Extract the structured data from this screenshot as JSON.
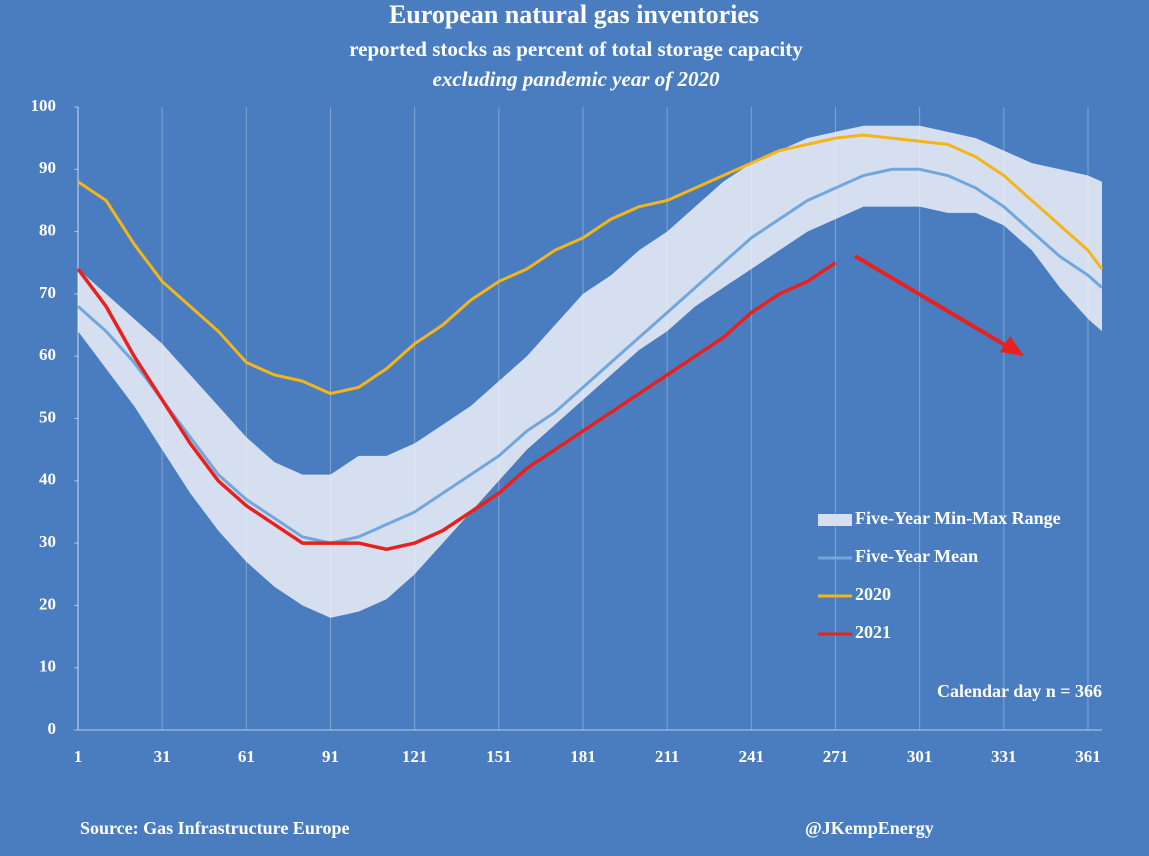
{
  "chart_data": {
    "type": "line",
    "title": "European natural gas inventories",
    "subtitle": "reported stocks as percent of total storage capacity",
    "subtitle2": "excluding pandemic year of 2020",
    "annotation": "Calendar day n = 366",
    "source": "Source: Gas Infrastructure Europe",
    "credit": "@JKempEnergy",
    "xlim": [
      1,
      366
    ],
    "ylim": [
      0,
      100
    ],
    "xticks": [
      1,
      31,
      61,
      91,
      121,
      151,
      181,
      211,
      241,
      271,
      301,
      331,
      361
    ],
    "yticks": [
      0,
      10,
      20,
      30,
      40,
      50,
      60,
      70,
      80,
      90,
      100
    ],
    "grid": "x",
    "x": [
      1,
      11,
      21,
      31,
      41,
      51,
      61,
      71,
      81,
      91,
      101,
      111,
      121,
      131,
      141,
      151,
      161,
      171,
      181,
      191,
      201,
      211,
      221,
      231,
      241,
      251,
      261,
      271,
      281,
      291,
      301,
      311,
      321,
      331,
      341,
      351,
      361,
      366
    ],
    "range": {
      "name": "Five-Year Min-Max Range",
      "color": "#d5dff0",
      "upper": [
        74,
        70,
        66,
        62,
        57,
        52,
        47,
        43,
        41,
        41,
        44,
        44,
        46,
        49,
        52,
        56,
        60,
        65,
        70,
        73,
        77,
        80,
        84,
        88,
        91,
        93,
        95,
        96,
        97,
        97,
        97,
        96,
        95,
        93,
        91,
        90,
        89,
        88
      ],
      "lower": [
        64,
        58,
        52,
        45,
        38,
        32,
        27,
        23,
        20,
        18,
        19,
        21,
        25,
        30,
        35,
        40,
        45,
        49,
        53,
        57,
        61,
        64,
        68,
        71,
        74,
        77,
        80,
        82,
        84,
        84,
        84,
        83,
        83,
        81,
        77,
        71,
        66,
        64
      ]
    },
    "series": [
      {
        "name": "Five-Year Mean",
        "color": "#72a7dd",
        "values": [
          68,
          64,
          59,
          53,
          47,
          41,
          37,
          34,
          31,
          30,
          31,
          33,
          35,
          38,
          41,
          44,
          48,
          51,
          55,
          59,
          63,
          67,
          71,
          75,
          79,
          82,
          85,
          87,
          89,
          90,
          90,
          89,
          87,
          84,
          80,
          76,
          73,
          71
        ]
      },
      {
        "name": "2020",
        "color": "#f3b51b",
        "values": [
          88,
          85,
          78,
          72,
          68,
          64,
          59,
          57,
          56,
          54,
          55,
          58,
          62,
          65,
          69,
          72,
          74,
          77,
          79,
          82,
          84,
          85,
          87,
          89,
          91,
          93,
          94,
          95,
          95.5,
          95,
          94.5,
          94,
          92,
          89,
          85,
          81,
          77,
          74
        ]
      },
      {
        "name": "2021",
        "color": "#e8211c",
        "values": [
          74,
          68,
          60,
          53,
          46,
          40,
          36,
          33,
          30,
          30,
          30,
          29,
          30,
          32,
          35,
          38,
          42,
          45,
          48,
          51,
          54,
          57,
          60,
          63,
          67,
          70,
          72,
          75,
          null,
          null,
          null,
          null,
          null,
          null,
          null,
          null,
          null,
          null
        ]
      }
    ]
  }
}
